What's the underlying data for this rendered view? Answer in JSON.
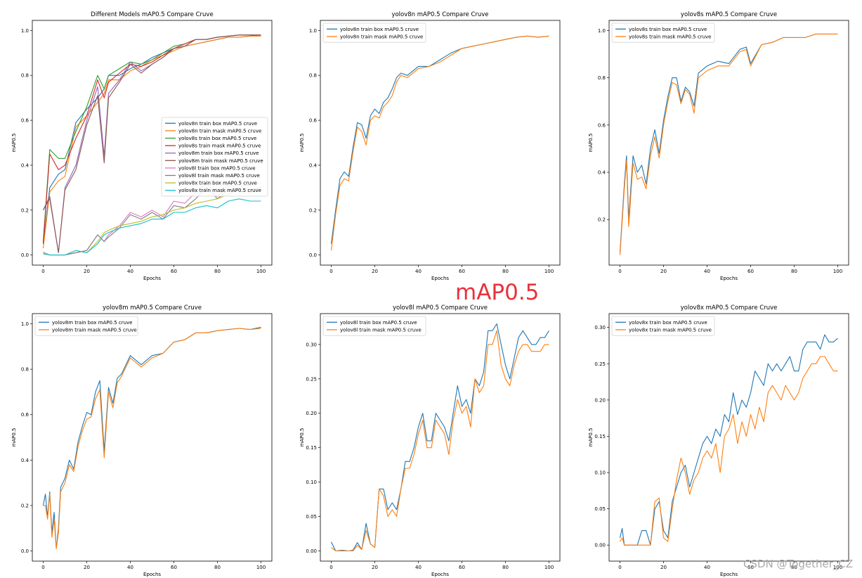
{
  "overlay": {
    "big_label": "mAP0.5",
    "watermark": "CSDN @Together_CZ"
  },
  "colors": {
    "c0": "#1f77b4",
    "c1": "#ff7f0e",
    "c2": "#2ca02c",
    "c3": "#d62728",
    "c4": "#9467bd",
    "c5": "#8c564b",
    "c6": "#e377c2",
    "c7": "#7f7f7f",
    "c8": "#bcbd22",
    "c9": "#17becf"
  },
  "chart_data": [
    {
      "type": "line",
      "title": "Different Models mAP0.5 Compare Cruve",
      "xlabel": "Epochs",
      "ylabel": "mAP0.5",
      "xlim": [
        0,
        100
      ],
      "ylim": [
        0,
        1.0
      ],
      "xticks": [
        0,
        20,
        40,
        60,
        80,
        100
      ],
      "yticks": [
        0.0,
        0.2,
        0.4,
        0.6,
        0.8,
        1.0
      ],
      "legend": "center-right",
      "x": [
        0,
        3,
        7,
        10,
        15,
        20,
        25,
        28,
        30,
        35,
        40,
        45,
        50,
        55,
        60,
        65,
        70,
        75,
        80,
        85,
        90,
        95,
        100
      ],
      "series": [
        {
          "name": "yolov8n train box mAP0.5 cruve",
          "values": [
            0.05,
            0.3,
            0.36,
            0.38,
            0.59,
            0.65,
            0.7,
            0.74,
            0.8,
            0.8,
            0.83,
            0.85,
            0.88,
            0.9,
            0.92,
            0.93,
            0.94,
            0.95,
            0.96,
            0.97,
            0.97,
            0.975,
            0.98
          ]
        },
        {
          "name": "yolov8n train mask mAP0.5 cruve",
          "values": [
            0.03,
            0.28,
            0.33,
            0.35,
            0.57,
            0.62,
            0.68,
            0.72,
            0.78,
            0.78,
            0.82,
            0.84,
            0.87,
            0.89,
            0.91,
            0.93,
            0.94,
            0.95,
            0.96,
            0.97,
            0.97,
            0.975,
            0.975
          ]
        },
        {
          "name": "yolov8s train box mAP0.5 cruve",
          "values": [
            0.06,
            0.47,
            0.43,
            0.43,
            0.55,
            0.66,
            0.8,
            0.74,
            0.8,
            0.83,
            0.86,
            0.85,
            0.87,
            0.9,
            0.93,
            0.94,
            0.96,
            0.96,
            0.97,
            0.975,
            0.98,
            0.98,
            0.98
          ]
        },
        {
          "name": "yolov8s train mask mAP0.5 cruve",
          "values": [
            0.05,
            0.45,
            0.38,
            0.4,
            0.52,
            0.62,
            0.78,
            0.7,
            0.77,
            0.81,
            0.85,
            0.84,
            0.86,
            0.89,
            0.92,
            0.94,
            0.96,
            0.96,
            0.97,
            0.975,
            0.98,
            0.98,
            0.98
          ]
        },
        {
          "name": "yolov8m train box mAP0.5 cruve",
          "values": [
            0.2,
            0.25,
            0.01,
            0.3,
            0.4,
            0.6,
            0.75,
            0.44,
            0.72,
            0.78,
            0.86,
            0.82,
            0.85,
            0.88,
            0.92,
            0.93,
            0.96,
            0.96,
            0.97,
            0.975,
            0.98,
            0.98,
            0.98
          ]
        },
        {
          "name": "yolov8m train mask mAP0.5 cruve",
          "values": [
            0.2,
            0.26,
            0.01,
            0.29,
            0.38,
            0.58,
            0.71,
            0.41,
            0.7,
            0.77,
            0.85,
            0.81,
            0.85,
            0.88,
            0.92,
            0.93,
            0.96,
            0.96,
            0.97,
            0.975,
            0.98,
            0.98,
            0.98
          ]
        },
        {
          "name": "yolov8l train box mAP0.5 cruve",
          "values": [
            0.013,
            0.0,
            0.0,
            0.0,
            0.01,
            0.02,
            0.09,
            0.06,
            0.09,
            0.13,
            0.19,
            0.17,
            0.2,
            0.17,
            0.24,
            0.23,
            0.28,
            0.32,
            0.26,
            0.31,
            0.31,
            0.31,
            0.32
          ]
        },
        {
          "name": "yolov8l train mask mAP0.5 cruve",
          "values": [
            0.005,
            0.0,
            0.0,
            0.0,
            0.01,
            0.02,
            0.09,
            0.06,
            0.08,
            0.12,
            0.18,
            0.16,
            0.19,
            0.16,
            0.22,
            0.21,
            0.25,
            0.3,
            0.25,
            0.29,
            0.3,
            0.29,
            0.3
          ]
        },
        {
          "name": "yolov8x train box mAP0.5 cruve",
          "values": [
            0.01,
            0.0,
            0.0,
            0.0,
            0.02,
            0.01,
            0.06,
            0.1,
            0.11,
            0.13,
            0.14,
            0.15,
            0.17,
            0.18,
            0.2,
            0.21,
            0.23,
            0.24,
            0.25,
            0.27,
            0.29,
            0.28,
            0.285
          ]
        },
        {
          "name": "yolov8x train mask mAP0.5 cruve",
          "values": [
            0.005,
            0.0,
            0.0,
            0.0,
            0.02,
            0.01,
            0.05,
            0.09,
            0.1,
            0.12,
            0.13,
            0.14,
            0.16,
            0.16,
            0.19,
            0.19,
            0.21,
            0.22,
            0.21,
            0.24,
            0.25,
            0.24,
            0.24
          ]
        }
      ]
    },
    {
      "type": "line",
      "title": "yolov8n mAP0.5 Compare Cruve",
      "xlabel": "Epochs",
      "ylabel": "mAP0.5",
      "xlim": [
        0,
        100
      ],
      "ylim": [
        0,
        1.0
      ],
      "xticks": [
        0,
        20,
        40,
        60,
        80,
        100
      ],
      "yticks": [
        0.0,
        0.2,
        0.4,
        0.6,
        0.8,
        1.0
      ],
      "legend": "top-left",
      "x": [
        0,
        2,
        4,
        6,
        8,
        10,
        12,
        14,
        16,
        18,
        20,
        22,
        24,
        26,
        28,
        30,
        32,
        35,
        40,
        45,
        50,
        55,
        60,
        65,
        70,
        75,
        80,
        85,
        90,
        95,
        100
      ],
      "series": [
        {
          "name": "yolov8n train box mAP0.5 cruve",
          "values": [
            0.05,
            0.2,
            0.34,
            0.37,
            0.35,
            0.48,
            0.59,
            0.58,
            0.52,
            0.62,
            0.65,
            0.63,
            0.68,
            0.7,
            0.74,
            0.79,
            0.81,
            0.8,
            0.84,
            0.84,
            0.87,
            0.9,
            0.92,
            0.93,
            0.94,
            0.95,
            0.96,
            0.97,
            0.975,
            0.97,
            0.975
          ]
        },
        {
          "name": "yolov8n train mask mAP0.5 cruve",
          "values": [
            0.02,
            0.18,
            0.31,
            0.34,
            0.33,
            0.46,
            0.57,
            0.55,
            0.49,
            0.6,
            0.62,
            0.61,
            0.66,
            0.68,
            0.71,
            0.77,
            0.8,
            0.79,
            0.83,
            0.84,
            0.86,
            0.89,
            0.92,
            0.93,
            0.94,
            0.95,
            0.96,
            0.97,
            0.975,
            0.97,
            0.975
          ]
        }
      ]
    },
    {
      "type": "line",
      "title": "yolov8s mAP0.5 Compare Cruve",
      "xlabel": "Epochs",
      "ylabel": "mAP0.5",
      "xlim": [
        0,
        100
      ],
      "ylim": [
        0.05,
        1.0
      ],
      "xticks": [
        0,
        20,
        40,
        60,
        80,
        100
      ],
      "yticks": [
        0.2,
        0.4,
        0.6,
        0.8,
        1.0
      ],
      "legend": "top-left",
      "x": [
        0,
        2,
        3,
        4,
        6,
        8,
        10,
        12,
        14,
        16,
        18,
        20,
        22,
        24,
        26,
        28,
        30,
        32,
        34,
        36,
        40,
        45,
        50,
        55,
        58,
        60,
        65,
        70,
        75,
        80,
        85,
        90,
        95,
        100
      ],
      "series": [
        {
          "name": "yolov8s train box mAP0.5 cruve",
          "values": [
            0.06,
            0.35,
            0.47,
            0.2,
            0.47,
            0.4,
            0.43,
            0.35,
            0.5,
            0.58,
            0.48,
            0.62,
            0.72,
            0.8,
            0.8,
            0.7,
            0.76,
            0.74,
            0.68,
            0.82,
            0.85,
            0.87,
            0.86,
            0.92,
            0.93,
            0.86,
            0.94,
            0.95,
            0.97,
            0.97,
            0.97,
            0.985,
            0.985,
            0.985
          ]
        },
        {
          "name": "yolov8s train mask mAP0.5 cruve",
          "values": [
            0.05,
            0.33,
            0.45,
            0.17,
            0.44,
            0.37,
            0.38,
            0.33,
            0.47,
            0.55,
            0.46,
            0.6,
            0.7,
            0.78,
            0.77,
            0.69,
            0.75,
            0.73,
            0.65,
            0.8,
            0.83,
            0.85,
            0.85,
            0.91,
            0.92,
            0.85,
            0.94,
            0.95,
            0.97,
            0.97,
            0.97,
            0.985,
            0.985,
            0.985
          ]
        }
      ]
    },
    {
      "type": "line",
      "title": "yolov8m mAP0.5 Compare Cruve",
      "xlabel": "Epochs",
      "ylabel": "mAP0.5",
      "xlim": [
        0,
        100
      ],
      "ylim": [
        0,
        1.0
      ],
      "xticks": [
        0,
        20,
        40,
        60,
        80,
        100
      ],
      "yticks": [
        0.0,
        0.2,
        0.4,
        0.6,
        0.8,
        1.0
      ],
      "legend": "top-left",
      "x": [
        0,
        1,
        2,
        3,
        4,
        5,
        6,
        7,
        8,
        10,
        12,
        14,
        16,
        18,
        20,
        22,
        24,
        26,
        28,
        30,
        32,
        34,
        36,
        40,
        45,
        50,
        55,
        60,
        65,
        70,
        75,
        80,
        85,
        90,
        95,
        100
      ],
      "series": [
        {
          "name": "yolov8m train box mAP0.5 cruve",
          "values": [
            0.2,
            0.25,
            0.15,
            0.26,
            0.08,
            0.17,
            0.01,
            0.1,
            0.28,
            0.32,
            0.4,
            0.36,
            0.48,
            0.55,
            0.61,
            0.6,
            0.7,
            0.75,
            0.44,
            0.72,
            0.65,
            0.76,
            0.78,
            0.86,
            0.82,
            0.86,
            0.87,
            0.92,
            0.93,
            0.96,
            0.96,
            0.97,
            0.975,
            0.98,
            0.975,
            0.985
          ]
        },
        {
          "name": "yolov8m train mask mAP0.5 cruve",
          "values": [
            0.2,
            0.2,
            0.14,
            0.25,
            0.06,
            0.14,
            0.01,
            0.08,
            0.26,
            0.3,
            0.38,
            0.35,
            0.46,
            0.53,
            0.58,
            0.59,
            0.67,
            0.71,
            0.41,
            0.7,
            0.63,
            0.74,
            0.77,
            0.85,
            0.81,
            0.85,
            0.87,
            0.92,
            0.93,
            0.96,
            0.96,
            0.97,
            0.975,
            0.98,
            0.975,
            0.98
          ]
        }
      ]
    },
    {
      "type": "line",
      "title": "yolov8l mAP0.5 Compare Cruve",
      "xlabel": "Epochs",
      "ylabel": "mAP0.5",
      "xlim": [
        0,
        100
      ],
      "ylim": [
        0,
        0.33
      ],
      "xticks": [
        0,
        20,
        40,
        60,
        80,
        100
      ],
      "yticks": [
        0.0,
        0.05,
        0.1,
        0.15,
        0.2,
        0.25,
        0.3
      ],
      "legend": "top-left",
      "x": [
        0,
        2,
        5,
        8,
        10,
        12,
        14,
        16,
        18,
        20,
        22,
        24,
        26,
        28,
        30,
        32,
        34,
        36,
        38,
        40,
        42,
        44,
        46,
        48,
        50,
        52,
        54,
        56,
        58,
        60,
        62,
        64,
        66,
        68,
        70,
        72,
        74,
        76,
        78,
        80,
        82,
        84,
        86,
        88,
        90,
        92,
        94,
        96,
        98,
        100
      ],
      "series": [
        {
          "name": "yolov8l train box mAP0.5 cruve",
          "values": [
            0.013,
            0.0,
            0.001,
            0.0,
            0.001,
            0.012,
            0.002,
            0.04,
            0.01,
            0.005,
            0.09,
            0.09,
            0.06,
            0.07,
            0.06,
            0.09,
            0.13,
            0.13,
            0.15,
            0.18,
            0.2,
            0.16,
            0.16,
            0.2,
            0.19,
            0.18,
            0.16,
            0.2,
            0.24,
            0.21,
            0.22,
            0.2,
            0.25,
            0.24,
            0.26,
            0.32,
            0.32,
            0.33,
            0.3,
            0.27,
            0.25,
            0.28,
            0.31,
            0.32,
            0.31,
            0.3,
            0.3,
            0.31,
            0.31,
            0.32
          ]
        },
        {
          "name": "yolov8l train mask mAP0.5 cruve",
          "values": [
            0.005,
            0.0,
            0.0,
            0.0,
            0.0,
            0.008,
            0.002,
            0.03,
            0.01,
            0.005,
            0.09,
            0.08,
            0.05,
            0.06,
            0.05,
            0.09,
            0.12,
            0.12,
            0.14,
            0.17,
            0.19,
            0.15,
            0.15,
            0.19,
            0.18,
            0.17,
            0.14,
            0.19,
            0.22,
            0.2,
            0.21,
            0.18,
            0.25,
            0.23,
            0.24,
            0.3,
            0.3,
            0.32,
            0.27,
            0.25,
            0.24,
            0.27,
            0.29,
            0.3,
            0.3,
            0.29,
            0.29,
            0.29,
            0.3,
            0.3
          ]
        }
      ]
    },
    {
      "type": "line",
      "title": "yolov8x mAP0.5 Compare Cruve",
      "xlabel": "Epochs",
      "ylabel": "mAP0.5",
      "xlim": [
        0,
        100
      ],
      "ylim": [
        -0.008,
        0.305
      ],
      "xticks": [
        0,
        20,
        40,
        60,
        80,
        100
      ],
      "yticks": [
        0.0,
        0.05,
        0.1,
        0.15,
        0.2,
        0.25,
        0.3
      ],
      "legend": "top-left",
      "x": [
        0,
        1,
        2,
        5,
        8,
        10,
        12,
        14,
        16,
        18,
        20,
        22,
        24,
        26,
        28,
        30,
        32,
        34,
        36,
        38,
        40,
        42,
        44,
        46,
        48,
        50,
        52,
        54,
        56,
        58,
        60,
        62,
        64,
        66,
        68,
        70,
        72,
        74,
        76,
        78,
        80,
        82,
        84,
        86,
        88,
        90,
        92,
        94,
        96,
        98,
        100
      ],
      "series": [
        {
          "name": "yolov8x train box mAP0.5 cruve",
          "values": [
            0.01,
            0.023,
            0.0,
            0.0,
            0.0,
            0.02,
            0.02,
            0.0,
            0.05,
            0.06,
            0.02,
            0.01,
            0.06,
            0.08,
            0.1,
            0.11,
            0.08,
            0.1,
            0.12,
            0.14,
            0.15,
            0.14,
            0.16,
            0.15,
            0.18,
            0.17,
            0.21,
            0.18,
            0.2,
            0.19,
            0.21,
            0.24,
            0.23,
            0.22,
            0.25,
            0.24,
            0.25,
            0.24,
            0.25,
            0.26,
            0.24,
            0.24,
            0.27,
            0.28,
            0.28,
            0.28,
            0.27,
            0.29,
            0.28,
            0.28,
            0.285
          ]
        },
        {
          "name": "yolov8x train mask mAP0.5 cruve",
          "values": [
            0.005,
            0.01,
            0.0,
            0.0,
            0.0,
            0.0,
            0.0,
            0.0,
            0.06,
            0.065,
            0.01,
            0.005,
            0.05,
            0.09,
            0.12,
            0.1,
            0.07,
            0.09,
            0.1,
            0.12,
            0.13,
            0.12,
            0.14,
            0.1,
            0.15,
            0.16,
            0.18,
            0.14,
            0.17,
            0.15,
            0.18,
            0.16,
            0.19,
            0.17,
            0.21,
            0.22,
            0.21,
            0.2,
            0.22,
            0.21,
            0.2,
            0.21,
            0.23,
            0.24,
            0.25,
            0.25,
            0.26,
            0.26,
            0.25,
            0.24,
            0.24
          ]
        }
      ]
    }
  ]
}
